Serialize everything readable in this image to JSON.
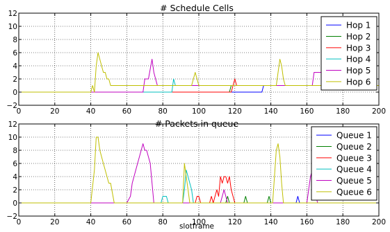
{
  "chart_data": [
    {
      "type": "line",
      "title": "# Schedule Cells",
      "xlabel": "",
      "ylabel": "",
      "xlim": [
        0,
        200
      ],
      "ylim": [
        -2,
        12
      ],
      "xticks": [
        "0",
        "20",
        "40",
        "60",
        "80",
        "100",
        "120",
        "140",
        "160",
        "180",
        "200"
      ],
      "yticks": [
        "−2",
        "0",
        "2",
        "4",
        "6",
        "8",
        "10",
        "12"
      ],
      "grid": true,
      "legend": "top-right",
      "series": [
        {
          "name": "Hop 1",
          "color": "#0000ff",
          "points": [
            [
              0,
              0
            ],
            [
              135,
              0
            ],
            [
              136,
              1
            ],
            [
              200,
              1
            ]
          ]
        },
        {
          "name": "Hop 2",
          "color": "#008000",
          "points": [
            [
              0,
              0
            ],
            [
              117,
              0
            ],
            [
              118,
              1
            ],
            [
              200,
              1
            ]
          ]
        },
        {
          "name": "Hop 3",
          "color": "#ff0000",
          "points": [
            [
              0,
              0
            ],
            [
              118,
              0
            ],
            [
              119,
              1
            ],
            [
              120,
              2
            ],
            [
              121,
              1
            ],
            [
              200,
              1
            ]
          ]
        },
        {
          "name": "Hop 4",
          "color": "#00bfbf",
          "points": [
            [
              0,
              0
            ],
            [
              85,
              0
            ],
            [
              86,
              2
            ],
            [
              87,
              1
            ],
            [
              200,
              1
            ]
          ]
        },
        {
          "name": "Hop 5",
          "color": "#bf00bf",
          "points": [
            [
              0,
              0
            ],
            [
              69,
              0
            ],
            [
              70,
              2
            ],
            [
              72,
              2
            ],
            [
              74,
              5
            ],
            [
              75,
              3
            ],
            [
              76,
              2
            ],
            [
              77,
              1
            ],
            [
              163,
              1
            ],
            [
              164,
              3
            ],
            [
              170,
              3
            ],
            [
              171,
              1
            ],
            [
              200,
              1
            ]
          ]
        },
        {
          "name": "Hop 6",
          "color": "#bfbf00",
          "points": [
            [
              0,
              0
            ],
            [
              40,
              0
            ],
            [
              41,
              1
            ],
            [
              42,
              0
            ],
            [
              43,
              4
            ],
            [
              44,
              6
            ],
            [
              45,
              5
            ],
            [
              46,
              4
            ],
            [
              47,
              3
            ],
            [
              48,
              3
            ],
            [
              49,
              2
            ],
            [
              50,
              2
            ],
            [
              51,
              1
            ],
            [
              96,
              1
            ],
            [
              98,
              3
            ],
            [
              99,
              2
            ],
            [
              100,
              1
            ],
            [
              143,
              1
            ],
            [
              144,
              3
            ],
            [
              145,
              5
            ],
            [
              146,
              4
            ],
            [
              147,
              2
            ],
            [
              148,
              1
            ],
            [
              200,
              1
            ]
          ]
        }
      ]
    },
    {
      "type": "line",
      "title": "# Packets in queue",
      "xlabel": "slotframe",
      "ylabel": "",
      "xlim": [
        0,
        200
      ],
      "ylim": [
        -2,
        12
      ],
      "xticks": [
        "0",
        "20",
        "40",
        "60",
        "80",
        "100",
        "120",
        "140",
        "160",
        "180",
        "200"
      ],
      "yticks": [
        "−2",
        "0",
        "2",
        "4",
        "6",
        "8",
        "10",
        "12"
      ],
      "grid": true,
      "legend": "top-right",
      "series": [
        {
          "name": "Queue 1",
          "color": "#0000ff",
          "points": [
            [
              0,
              0
            ],
            [
              154,
              0
            ],
            [
              155,
              1
            ],
            [
              156,
              0
            ],
            [
              200,
              0
            ]
          ]
        },
        {
          "name": "Queue 2",
          "color": "#008000",
          "points": [
            [
              0,
              0
            ],
            [
              115,
              0
            ],
            [
              116,
              1
            ],
            [
              117,
              0
            ],
            [
              125,
              0
            ],
            [
              126,
              1
            ],
            [
              127,
              0
            ],
            [
              138,
              0
            ],
            [
              139,
              1
            ],
            [
              140,
              0
            ],
            [
              200,
              0
            ]
          ]
        },
        {
          "name": "Queue 3",
          "color": "#ff0000",
          "points": [
            [
              0,
              0
            ],
            [
              98,
              0
            ],
            [
              99,
              1
            ],
            [
              100,
              1
            ],
            [
              101,
              0
            ],
            [
              106,
              0
            ],
            [
              107,
              1
            ],
            [
              108,
              0
            ],
            [
              109,
              1
            ],
            [
              110,
              2
            ],
            [
              111,
              1
            ],
            [
              112,
              4
            ],
            [
              113,
              3
            ],
            [
              114,
              4
            ],
            [
              115,
              4
            ],
            [
              116,
              3
            ],
            [
              117,
              4
            ],
            [
              118,
              2
            ],
            [
              119,
              1
            ],
            [
              120,
              0
            ],
            [
              200,
              0
            ]
          ]
        },
        {
          "name": "Queue 4",
          "color": "#00bfbf",
          "points": [
            [
              0,
              0
            ],
            [
              79,
              0
            ],
            [
              80,
              1
            ],
            [
              82,
              1
            ],
            [
              83,
              0
            ],
            [
              91,
              0
            ],
            [
              92,
              2
            ],
            [
              93,
              5
            ],
            [
              94,
              4
            ],
            [
              95,
              3
            ],
            [
              96,
              2
            ],
            [
              97,
              0
            ],
            [
              200,
              0
            ]
          ]
        },
        {
          "name": "Queue 5",
          "color": "#bf00bf",
          "points": [
            [
              0,
              0
            ],
            [
              60,
              0
            ],
            [
              62,
              1
            ],
            [
              63,
              3
            ],
            [
              66,
              6
            ],
            [
              69,
              9
            ],
            [
              70,
              8
            ],
            [
              71,
              8
            ],
            [
              72,
              7
            ],
            [
              73,
              6
            ],
            [
              74,
              3
            ],
            [
              75,
              0
            ],
            [
              112,
              0
            ],
            [
              113,
              1
            ],
            [
              114,
              2
            ],
            [
              115,
              1
            ],
            [
              116,
              0
            ],
            [
              160,
              0
            ],
            [
              162,
              4
            ],
            [
              163,
              5
            ],
            [
              164,
              3
            ],
            [
              165,
              1
            ],
            [
              166,
              0
            ],
            [
              200,
              0
            ]
          ]
        },
        {
          "name": "Queue 6",
          "color": "#bfbf00",
          "points": [
            [
              0,
              0
            ],
            [
              40,
              0
            ],
            [
              42,
              5
            ],
            [
              43,
              10
            ],
            [
              44,
              10
            ],
            [
              45,
              8
            ],
            [
              47,
              6
            ],
            [
              49,
              4
            ],
            [
              50,
              3
            ],
            [
              51,
              3
            ],
            [
              53,
              0
            ],
            [
              91,
              0
            ],
            [
              92,
              6
            ],
            [
              93,
              4
            ],
            [
              94,
              2
            ],
            [
              95,
              0
            ],
            [
              141,
              0
            ],
            [
              142,
              4
            ],
            [
              143,
              8
            ],
            [
              144,
              9
            ],
            [
              145,
              7
            ],
            [
              146,
              3
            ],
            [
              147,
              0
            ],
            [
              200,
              0
            ]
          ]
        }
      ]
    }
  ]
}
